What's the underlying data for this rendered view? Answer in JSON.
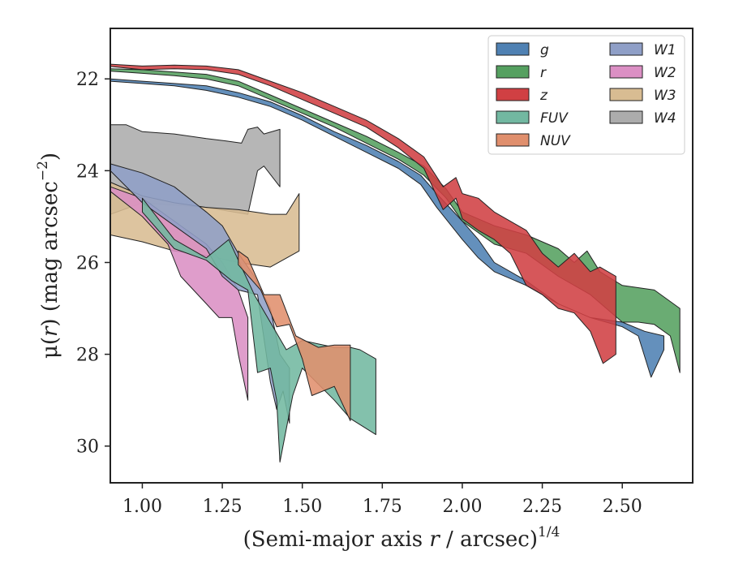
{
  "chart_data": {
    "type": "area",
    "title": "",
    "xlabel": {
      "pre": "(Semi-major axis ",
      "var": "r",
      "post": " / arcsec)",
      "sup": "1/4"
    },
    "ylabel": {
      "pre": "μ(",
      "var": "r",
      "post": ") (mag arcsec",
      "sup": "−2",
      "end": ")"
    },
    "xlim": [
      0.9,
      2.72
    ],
    "ylim": [
      30.8,
      20.9
    ],
    "y_inverted": true,
    "xticks": [
      1.0,
      1.25,
      1.5,
      1.75,
      2.0,
      2.25,
      2.5
    ],
    "xtick_labels": [
      "1.00",
      "1.25",
      "1.50",
      "1.75",
      "2.00",
      "2.25",
      "2.50"
    ],
    "yticks": [
      22,
      24,
      26,
      28,
      30
    ],
    "ytick_labels": [
      "22",
      "24",
      "26",
      "28",
      "30"
    ],
    "grid": false,
    "legend": {
      "placement": "top-right",
      "columns": 2
    },
    "series": [
      {
        "name": "W4",
        "color": "#acacac",
        "upper": [
          [
            0.9,
            23.0
          ],
          [
            0.95,
            23.0
          ],
          [
            1.0,
            23.15
          ],
          [
            1.1,
            23.2
          ],
          [
            1.2,
            23.3
          ],
          [
            1.26,
            23.35
          ],
          [
            1.31,
            23.4
          ],
          [
            1.33,
            23.1
          ],
          [
            1.36,
            23.05
          ],
          [
            1.38,
            23.2
          ],
          [
            1.43,
            23.1
          ]
        ],
        "lower": [
          [
            0.9,
            24.95
          ],
          [
            1.0,
            24.7
          ],
          [
            1.1,
            24.75
          ],
          [
            1.2,
            24.8
          ],
          [
            1.33,
            24.95
          ],
          [
            1.36,
            24.0
          ],
          [
            1.38,
            23.9
          ],
          [
            1.43,
            24.35
          ]
        ]
      },
      {
        "name": "W3",
        "color": "#d8bc92",
        "upper": [
          [
            0.9,
            24.25
          ],
          [
            1.0,
            24.55
          ],
          [
            1.1,
            24.7
          ],
          [
            1.2,
            24.8
          ],
          [
            1.3,
            24.85
          ],
          [
            1.4,
            24.95
          ],
          [
            1.45,
            24.95
          ],
          [
            1.49,
            24.5
          ]
        ],
        "lower": [
          [
            0.9,
            25.4
          ],
          [
            1.0,
            25.55
          ],
          [
            1.1,
            25.75
          ],
          [
            1.2,
            25.85
          ],
          [
            1.3,
            26.0
          ],
          [
            1.4,
            26.1
          ],
          [
            1.49,
            25.75
          ]
        ]
      },
      {
        "name": "W2",
        "color": "#db8fc4",
        "upper": [
          [
            0.9,
            24.35
          ],
          [
            1.0,
            24.6
          ],
          [
            1.1,
            25.1
          ],
          [
            1.2,
            25.6
          ],
          [
            1.25,
            26.0
          ],
          [
            1.3,
            26.6
          ],
          [
            1.33,
            27.2
          ]
        ],
        "lower": [
          [
            0.9,
            24.45
          ],
          [
            1.0,
            25.0
          ],
          [
            1.08,
            25.6
          ],
          [
            1.12,
            26.3
          ],
          [
            1.2,
            26.9
          ],
          [
            1.24,
            27.2
          ],
          [
            1.28,
            27.2
          ],
          [
            1.3,
            28.0
          ],
          [
            1.33,
            29.0
          ]
        ]
      },
      {
        "name": "W1",
        "color": "#8f9fc7",
        "upper": [
          [
            0.9,
            23.85
          ],
          [
            1.0,
            24.05
          ],
          [
            1.1,
            24.35
          ],
          [
            1.2,
            24.9
          ],
          [
            1.25,
            25.2
          ],
          [
            1.3,
            25.8
          ],
          [
            1.35,
            26.3
          ],
          [
            1.4,
            27.0
          ],
          [
            1.43,
            28.0
          ],
          [
            1.46,
            28.3
          ]
        ],
        "lower": [
          [
            0.9,
            24.0
          ],
          [
            1.0,
            24.7
          ],
          [
            1.1,
            25.2
          ],
          [
            1.2,
            25.7
          ],
          [
            1.25,
            26.3
          ],
          [
            1.3,
            26.6
          ],
          [
            1.36,
            26.7
          ],
          [
            1.4,
            28.6
          ],
          [
            1.42,
            29.2
          ],
          [
            1.44,
            28.8
          ],
          [
            1.46,
            29.5
          ]
        ]
      },
      {
        "name": "FUV",
        "color": "#72b8a1",
        "upper": [
          [
            1.0,
            24.6
          ],
          [
            1.1,
            25.5
          ],
          [
            1.2,
            25.9
          ],
          [
            1.27,
            25.5
          ],
          [
            1.35,
            26.7
          ],
          [
            1.45,
            27.9
          ],
          [
            1.5,
            27.7
          ],
          [
            1.6,
            27.85
          ],
          [
            1.65,
            27.85
          ],
          [
            1.68,
            27.9
          ],
          [
            1.73,
            28.1
          ]
        ],
        "lower": [
          [
            1.0,
            24.9
          ],
          [
            1.1,
            25.7
          ],
          [
            1.2,
            25.95
          ],
          [
            1.28,
            26.4
          ],
          [
            1.33,
            26.6
          ],
          [
            1.36,
            28.4
          ],
          [
            1.4,
            28.3
          ],
          [
            1.42,
            29.0
          ],
          [
            1.43,
            30.35
          ],
          [
            1.47,
            28.9
          ],
          [
            1.5,
            28.3
          ],
          [
            1.6,
            29.0
          ],
          [
            1.65,
            29.4
          ],
          [
            1.73,
            29.75
          ]
        ]
      },
      {
        "name": "NUV",
        "color": "#e08f6d",
        "upper": [
          [
            1.3,
            25.75
          ],
          [
            1.33,
            25.9
          ],
          [
            1.38,
            26.7
          ],
          [
            1.43,
            26.7
          ],
          [
            1.48,
            27.6
          ],
          [
            1.55,
            27.85
          ],
          [
            1.6,
            27.8
          ],
          [
            1.65,
            27.8
          ]
        ],
        "lower": [
          [
            1.3,
            26.05
          ],
          [
            1.37,
            26.6
          ],
          [
            1.42,
            27.4
          ],
          [
            1.46,
            27.35
          ],
          [
            1.5,
            28.1
          ],
          [
            1.53,
            28.9
          ],
          [
            1.6,
            28.7
          ],
          [
            1.65,
            29.45
          ]
        ]
      },
      {
        "name": "g",
        "color": "#4f81b3",
        "upper": [
          [
            0.9,
            22.0
          ],
          [
            1.0,
            22.05
          ],
          [
            1.1,
            22.1
          ],
          [
            1.2,
            22.15
          ],
          [
            1.3,
            22.3
          ],
          [
            1.4,
            22.5
          ],
          [
            1.5,
            22.8
          ],
          [
            1.6,
            23.15
          ],
          [
            1.7,
            23.45
          ],
          [
            1.8,
            23.8
          ],
          [
            1.87,
            24.1
          ],
          [
            1.92,
            24.5
          ],
          [
            2.0,
            25.1
          ],
          [
            2.05,
            25.5
          ],
          [
            2.1,
            26.0
          ],
          [
            2.2,
            26.4
          ],
          [
            2.3,
            26.9
          ],
          [
            2.4,
            27.2
          ],
          [
            2.5,
            27.3
          ],
          [
            2.57,
            27.5
          ],
          [
            2.63,
            27.6
          ]
        ],
        "lower": [
          [
            0.9,
            22.05
          ],
          [
            1.0,
            22.1
          ],
          [
            1.1,
            22.15
          ],
          [
            1.2,
            22.25
          ],
          [
            1.3,
            22.4
          ],
          [
            1.4,
            22.6
          ],
          [
            1.5,
            22.9
          ],
          [
            1.6,
            23.25
          ],
          [
            1.7,
            23.6
          ],
          [
            1.8,
            23.95
          ],
          [
            1.87,
            24.3
          ],
          [
            1.92,
            24.8
          ],
          [
            2.0,
            25.5
          ],
          [
            2.05,
            25.9
          ],
          [
            2.1,
            26.2
          ],
          [
            2.2,
            26.5
          ],
          [
            2.3,
            26.9
          ],
          [
            2.4,
            27.2
          ],
          [
            2.5,
            27.4
          ],
          [
            2.55,
            27.6
          ],
          [
            2.59,
            28.5
          ],
          [
            2.63,
            27.9
          ]
        ]
      },
      {
        "name": "r",
        "color": "#55a060",
        "upper": [
          [
            0.9,
            21.78
          ],
          [
            1.0,
            21.8
          ],
          [
            1.1,
            21.85
          ],
          [
            1.2,
            21.9
          ],
          [
            1.3,
            22.05
          ],
          [
            1.4,
            22.35
          ],
          [
            1.5,
            22.65
          ],
          [
            1.6,
            22.95
          ],
          [
            1.7,
            23.25
          ],
          [
            1.8,
            23.6
          ],
          [
            1.88,
            23.9
          ],
          [
            1.95,
            24.4
          ],
          [
            2.0,
            24.9
          ],
          [
            2.1,
            25.2
          ],
          [
            2.2,
            25.4
          ],
          [
            2.3,
            25.7
          ],
          [
            2.35,
            26.0
          ],
          [
            2.39,
            25.75
          ],
          [
            2.43,
            26.2
          ],
          [
            2.5,
            26.5
          ],
          [
            2.6,
            26.6
          ],
          [
            2.68,
            27.0
          ]
        ],
        "lower": [
          [
            0.9,
            21.83
          ],
          [
            1.0,
            21.88
          ],
          [
            1.1,
            21.93
          ],
          [
            1.2,
            22.0
          ],
          [
            1.3,
            22.15
          ],
          [
            1.4,
            22.45
          ],
          [
            1.5,
            22.75
          ],
          [
            1.6,
            23.05
          ],
          [
            1.7,
            23.4
          ],
          [
            1.8,
            23.75
          ],
          [
            1.88,
            24.1
          ],
          [
            1.95,
            24.6
          ],
          [
            2.0,
            25.1
          ],
          [
            2.1,
            25.6
          ],
          [
            2.2,
            25.8
          ],
          [
            2.3,
            26.3
          ],
          [
            2.4,
            26.7
          ],
          [
            2.5,
            27.3
          ],
          [
            2.55,
            27.3
          ],
          [
            2.6,
            27.35
          ],
          [
            2.65,
            27.6
          ],
          [
            2.68,
            28.4
          ]
        ]
      },
      {
        "name": "z",
        "color": "#d04043",
        "upper": [
          [
            0.9,
            21.68
          ],
          [
            1.0,
            21.72
          ],
          [
            1.1,
            21.7
          ],
          [
            1.2,
            21.72
          ],
          [
            1.3,
            21.8
          ],
          [
            1.4,
            22.05
          ],
          [
            1.5,
            22.3
          ],
          [
            1.6,
            22.6
          ],
          [
            1.7,
            22.9
          ],
          [
            1.8,
            23.3
          ],
          [
            1.88,
            23.7
          ],
          [
            1.94,
            24.35
          ],
          [
            1.98,
            24.15
          ],
          [
            2.0,
            24.5
          ],
          [
            2.05,
            24.6
          ],
          [
            2.1,
            24.9
          ],
          [
            2.15,
            25.1
          ],
          [
            2.2,
            25.3
          ],
          [
            2.25,
            25.8
          ],
          [
            2.3,
            26.1
          ],
          [
            2.35,
            25.8
          ],
          [
            2.4,
            26.2
          ],
          [
            2.43,
            26.1
          ],
          [
            2.48,
            26.3
          ]
        ],
        "lower": [
          [
            0.9,
            21.73
          ],
          [
            1.0,
            21.8
          ],
          [
            1.1,
            21.78
          ],
          [
            1.2,
            21.8
          ],
          [
            1.3,
            21.9
          ],
          [
            1.4,
            22.15
          ],
          [
            1.5,
            22.45
          ],
          [
            1.6,
            22.75
          ],
          [
            1.7,
            23.05
          ],
          [
            1.8,
            23.5
          ],
          [
            1.88,
            23.95
          ],
          [
            1.94,
            24.85
          ],
          [
            1.98,
            24.6
          ],
          [
            2.0,
            25.05
          ],
          [
            2.05,
            25.3
          ],
          [
            2.1,
            25.5
          ],
          [
            2.15,
            25.8
          ],
          [
            2.2,
            26.5
          ],
          [
            2.25,
            26.7
          ],
          [
            2.3,
            27.0
          ],
          [
            2.35,
            27.1
          ],
          [
            2.4,
            27.5
          ],
          [
            2.44,
            28.2
          ],
          [
            2.48,
            28.0
          ]
        ]
      }
    ]
  },
  "legend_order": [
    "g",
    "r",
    "z",
    "FUV",
    "NUV",
    "W1",
    "W2",
    "W3",
    "W4"
  ]
}
